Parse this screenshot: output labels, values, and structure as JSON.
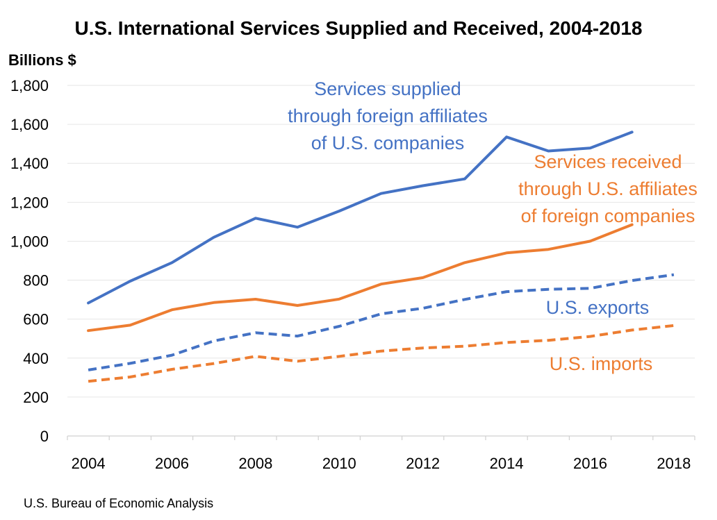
{
  "chart_data": {
    "type": "line",
    "title": "U.S. International Services Supplied and Received, 2004-2018",
    "ylabel": "Billions $",
    "ylim": [
      0,
      1800
    ],
    "yticks": [
      0,
      200,
      400,
      600,
      800,
      1000,
      1200,
      1400,
      1600,
      1800
    ],
    "ytick_labels": [
      "0",
      "200",
      "400",
      "600",
      "800",
      "1,000",
      "1,200",
      "1,400",
      "1,600",
      "1,800"
    ],
    "xlim": [
      2004,
      2018
    ],
    "xticks": [
      2004,
      2006,
      2008,
      2010,
      2012,
      2014,
      2016,
      2018
    ],
    "xtick_labels": [
      "2004",
      "2006",
      "2008",
      "2010",
      "2012",
      "2014",
      "2016",
      "2018"
    ],
    "grid": "horizontal",
    "legend": "none",
    "series": [
      {
        "id": "supplied",
        "style": "solid",
        "color": "#4472C4",
        "label_lines": [
          "Services supplied",
          "through foreign affiliates",
          "of U.S. companies"
        ],
        "points": [
          [
            2004,
            683
          ],
          [
            2005,
            795
          ],
          [
            2006,
            890
          ],
          [
            2007,
            1020
          ],
          [
            2008,
            1118
          ],
          [
            2009,
            1072
          ],
          [
            2010,
            1155
          ],
          [
            2011,
            1245
          ],
          [
            2012,
            1285
          ],
          [
            2013,
            1320
          ],
          [
            2014,
            1535
          ],
          [
            2015,
            1463
          ],
          [
            2016,
            1478
          ],
          [
            2017,
            1560
          ]
        ]
      },
      {
        "id": "received",
        "style": "solid",
        "color": "#ED7D31",
        "label_lines": [
          "Services received",
          "through U.S. affiliates",
          "of foreign companies"
        ],
        "points": [
          [
            2004,
            541
          ],
          [
            2005,
            569
          ],
          [
            2006,
            648
          ],
          [
            2007,
            685
          ],
          [
            2008,
            702
          ],
          [
            2009,
            670
          ],
          [
            2010,
            703
          ],
          [
            2011,
            780
          ],
          [
            2012,
            813
          ],
          [
            2013,
            890
          ],
          [
            2014,
            940
          ],
          [
            2015,
            958
          ],
          [
            2016,
            1000
          ],
          [
            2017,
            1085
          ]
        ]
      },
      {
        "id": "exports",
        "style": "dashed",
        "color": "#4472C4",
        "label_lines": [
          "U.S. exports"
        ],
        "points": [
          [
            2004,
            339
          ],
          [
            2005,
            373
          ],
          [
            2006,
            415
          ],
          [
            2007,
            488
          ],
          [
            2008,
            530
          ],
          [
            2009,
            513
          ],
          [
            2010,
            563
          ],
          [
            2011,
            627
          ],
          [
            2012,
            656
          ],
          [
            2013,
            701
          ],
          [
            2014,
            741
          ],
          [
            2015,
            753
          ],
          [
            2016,
            758
          ],
          [
            2017,
            798
          ],
          [
            2018,
            828
          ]
        ]
      },
      {
        "id": "imports",
        "style": "dashed",
        "color": "#ED7D31",
        "label_lines": [
          "U.S. imports"
        ],
        "points": [
          [
            2004,
            281
          ],
          [
            2005,
            303
          ],
          [
            2006,
            342
          ],
          [
            2007,
            372
          ],
          [
            2008,
            409
          ],
          [
            2009,
            384
          ],
          [
            2010,
            409
          ],
          [
            2011,
            436
          ],
          [
            2012,
            452
          ],
          [
            2013,
            461
          ],
          [
            2014,
            480
          ],
          [
            2015,
            491
          ],
          [
            2016,
            511
          ],
          [
            2017,
            544
          ],
          [
            2018,
            567
          ]
        ]
      }
    ]
  },
  "source": "U.S. Bureau of Economic Analysis"
}
